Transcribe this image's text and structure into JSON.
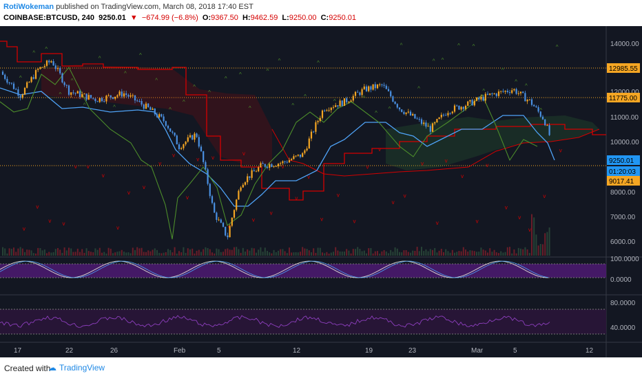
{
  "header": {
    "author": "RotiWokeman",
    "published_text": "published on TradingView.com, March 08, 2018 17:40 EST",
    "symbol": "COINBASE:BTCUSD, 240",
    "last": "9250.01",
    "change": "−674.99 (−6.8%)",
    "ohlc": {
      "o_label": "O:",
      "o": "9367.50",
      "h_label": "H:",
      "h": "9462.59",
      "l_label": "L:",
      "l": "9250.00",
      "c_label": "C:",
      "c": "9250.01"
    }
  },
  "price_axis": {
    "ticks": [
      "14000.00",
      "12000.00",
      "11000.00",
      "10000.00",
      "8000.00",
      "7000.00",
      "6000.00"
    ],
    "tags": [
      {
        "label": "12985.55",
        "color": "#f5a623"
      },
      {
        "label": "11775.00",
        "color": "#f5a623"
      },
      {
        "label": "9250.01",
        "color": "#2196f3"
      },
      {
        "label": "01:20:03",
        "color": "#2196f3"
      },
      {
        "label": "9017.41",
        "color": "#f5a623"
      }
    ]
  },
  "stoch_axis": {
    "ticks": [
      "100.0000",
      "0.0000"
    ]
  },
  "rsi_axis": {
    "ticks": [
      "80.0000",
      "40.0000"
    ]
  },
  "time_axis": {
    "labels": [
      "17",
      "22",
      "26",
      "Feb",
      "5",
      "12",
      "19",
      "23",
      "Mar",
      "5",
      "12"
    ]
  },
  "colors": {
    "bg": "#131722",
    "up": "#f5a623",
    "down": "#4a90e2",
    "kijun": "#d50000",
    "tenkan": "#4fa3f7",
    "chikou": "#4c8c2b",
    "stoch_band": "#4a1a6e"
  },
  "footer": {
    "created": "Created with",
    "brand": "TradingView"
  }
}
